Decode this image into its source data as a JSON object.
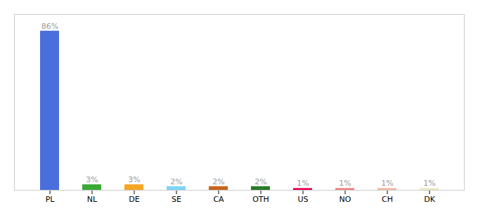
{
  "chart_data": {
    "type": "bar",
    "categories": [
      "PL",
      "NL",
      "DE",
      "SE",
      "CA",
      "OTH",
      "US",
      "NO",
      "CH",
      "DK"
    ],
    "values": [
      86,
      3,
      3,
      2,
      2,
      2,
      1,
      1,
      1,
      1
    ],
    "value_labels": [
      "86%",
      "3%",
      "3%",
      "2%",
      "2%",
      "2%",
      "1%",
      "1%",
      "1%",
      "1%"
    ],
    "colors": [
      "#4a6fdc",
      "#3aaa35",
      "#f5a623",
      "#7dd4f5",
      "#c8651b",
      "#2a7a2a",
      "#e8004e",
      "#f08080",
      "#f4b8a0",
      "#f0e8c0"
    ],
    "ylim": [
      0,
      95
    ],
    "data_labels": true,
    "tick_labels": "x"
  }
}
